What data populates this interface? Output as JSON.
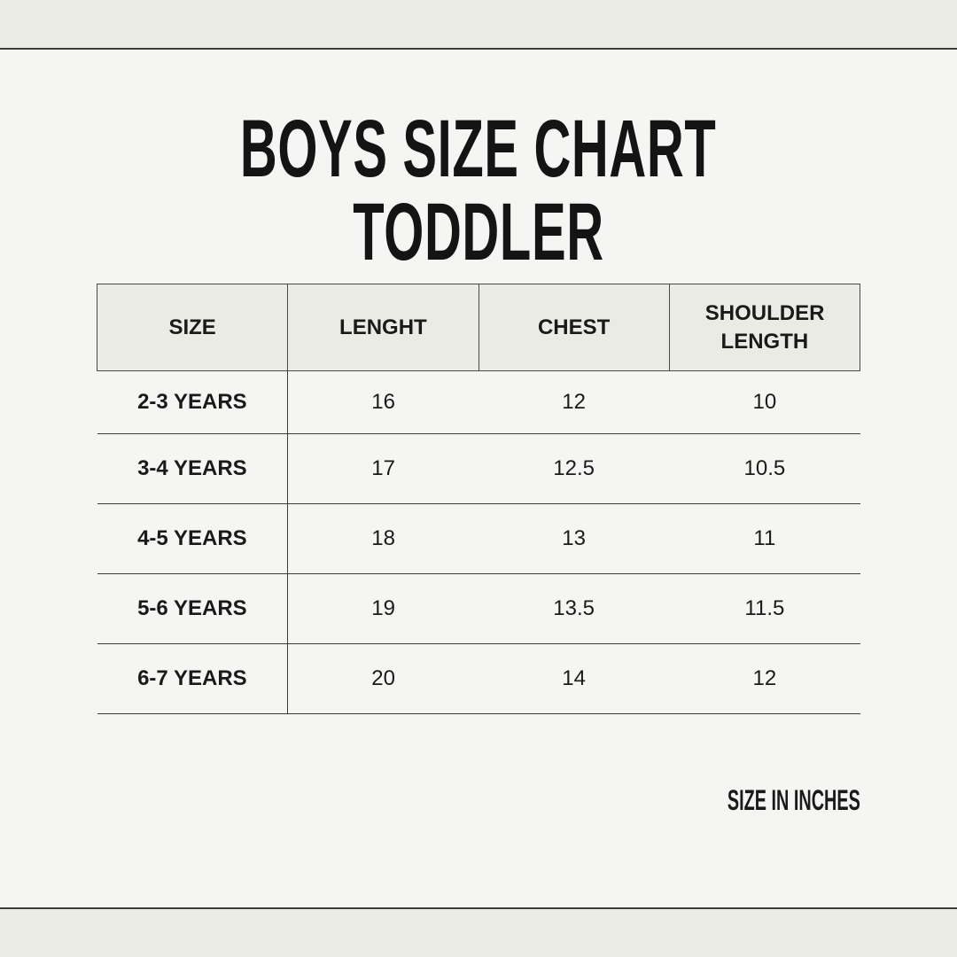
{
  "title_line1": "BOYS SIZE CHART",
  "title_line2": "TODDLER",
  "table": {
    "headers": [
      "SIZE",
      "LENGHT",
      "CHEST",
      "SHOULDER LENGTH"
    ],
    "rows": [
      [
        "2-3 YEARS",
        "16",
        "12",
        "10"
      ],
      [
        "3-4 YEARS",
        "17",
        "12.5",
        "10.5"
      ],
      [
        "4-5 YEARS",
        "18",
        "13",
        "11"
      ],
      [
        "5-6 YEARS",
        "19",
        "13.5",
        "11.5"
      ],
      [
        "6-7 YEARS",
        "20",
        "14",
        "12"
      ]
    ]
  },
  "note": "SIZE IN INCHES",
  "colors": {
    "background": "#f5f5f3",
    "header_fill": "#ebebe6",
    "text": "#1a1a1a"
  }
}
